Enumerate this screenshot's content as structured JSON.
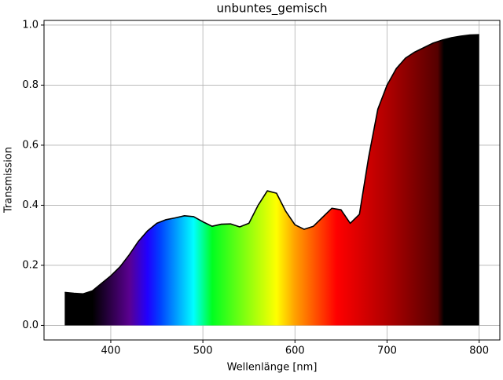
{
  "chart_data": {
    "type": "line",
    "title": "unbuntes_gemisch",
    "xlabel": "Wellenlänge [nm]",
    "ylabel": "Transmission",
    "x": [
      350,
      360,
      370,
      380,
      390,
      400,
      410,
      420,
      430,
      440,
      450,
      460,
      470,
      480,
      490,
      500,
      510,
      520,
      530,
      540,
      550,
      560,
      570,
      580,
      590,
      600,
      610,
      620,
      630,
      640,
      650,
      660,
      670,
      680,
      690,
      700,
      710,
      720,
      730,
      740,
      750,
      760,
      770,
      780,
      790,
      800
    ],
    "series": [
      {
        "color": "#000000",
        "values": [
          0.11,
          0.107,
          0.105,
          0.115,
          0.14,
          0.165,
          0.195,
          0.235,
          0.28,
          0.315,
          0.34,
          0.352,
          0.358,
          0.365,
          0.362,
          0.345,
          0.33,
          0.337,
          0.338,
          0.328,
          0.34,
          0.4,
          0.448,
          0.44,
          0.38,
          0.335,
          0.32,
          0.33,
          0.36,
          0.39,
          0.385,
          0.34,
          0.37,
          0.56,
          0.72,
          0.8,
          0.855,
          0.89,
          0.91,
          0.925,
          0.94,
          0.95,
          0.958,
          0.963,
          0.967,
          0.968
        ]
      }
    ],
    "xlim": [
      327.5,
      822.5
    ],
    "ylim": [
      -0.0485,
      1.0155
    ],
    "xticks": [
      400,
      500,
      600,
      700,
      800
    ],
    "yticks": [
      {
        "value": 0,
        "label": "0.0"
      },
      {
        "value": 0.2,
        "label": "0.2"
      },
      {
        "value": 0.4,
        "label": "0.4"
      },
      {
        "value": 0.6,
        "label": "0.6"
      },
      {
        "value": 0.8,
        "label": "0.8"
      },
      {
        "value": 1,
        "label": "1.0"
      }
    ],
    "grid": true
  }
}
